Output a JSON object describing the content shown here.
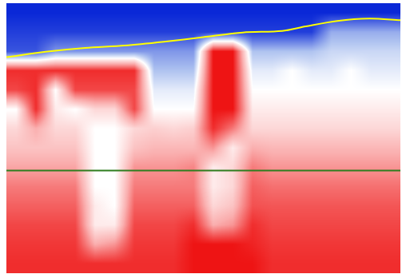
{
  "chart_data": {
    "type": "heatmap",
    "tick_labels": false,
    "grid": false,
    "xlim": [
      0,
      500
    ],
    "ylim": [
      0,
      350
    ],
    "zlim": [
      0,
      1
    ],
    "x_bins": [
      0,
      25,
      50,
      75,
      100,
      125,
      150,
      175,
      200,
      225,
      250,
      275,
      300,
      325,
      350,
      375,
      400,
      425,
      450,
      475,
      500
    ],
    "y_bins": [
      350,
      325,
      300,
      275,
      250,
      225,
      200,
      175,
      150,
      125,
      100,
      75,
      50,
      25,
      0
    ],
    "cells": [
      [
        0,
        0,
        0,
        0,
        0,
        0,
        0,
        0,
        0,
        0,
        0,
        0,
        0,
        0,
        0,
        0,
        0,
        0,
        0,
        0
      ],
      [
        0.05,
        0.05,
        0.05,
        0.05,
        0.05,
        0.05,
        0.05,
        0.05,
        0.05,
        0.05,
        0.05,
        0.05,
        0.05,
        0.05,
        0.05,
        0.05,
        0.3,
        0.3,
        0.3,
        0.3
      ],
      [
        0.1,
        0.1,
        0.25,
        0.25,
        0.25,
        0.25,
        0.25,
        0.25,
        0.25,
        0.25,
        1,
        1,
        0.35,
        0.35,
        0.35,
        0.35,
        0.4,
        0.4,
        0.4,
        0.4
      ],
      [
        0.95,
        0.95,
        0.95,
        0.95,
        0.95,
        0.95,
        0.95,
        0.35,
        0.35,
        0.35,
        1,
        1,
        0.45,
        0.45,
        0.5,
        0.45,
        0.45,
        0.5,
        0.45,
        0.45
      ],
      [
        0.9,
        0.95,
        0.5,
        0.9,
        0.9,
        0.9,
        0.9,
        0.45,
        0.45,
        0.45,
        1,
        1,
        0.5,
        0.5,
        0.5,
        0.5,
        0.5,
        0.5,
        0.5,
        0.5
      ],
      [
        0.5,
        0.95,
        0.55,
        0.5,
        0.6,
        0.6,
        0.9,
        0.5,
        0.5,
        0.5,
        1,
        1,
        0.55,
        0.55,
        0.55,
        0.55,
        0.55,
        0.55,
        0.55,
        0.55
      ],
      [
        0.6,
        0.7,
        0.6,
        0.6,
        0.5,
        0.5,
        0.6,
        0.62,
        0.6,
        0.62,
        0.95,
        0.8,
        0.6,
        0.6,
        0.6,
        0.6,
        0.6,
        0.6,
        0.6,
        0.6
      ],
      [
        0.65,
        0.65,
        0.65,
        0.65,
        0.5,
        0.5,
        0.65,
        0.68,
        0.68,
        0.68,
        0.75,
        0.55,
        0.7,
        0.68,
        0.68,
        0.68,
        0.68,
        0.68,
        0.68,
        0.68
      ],
      [
        0.72,
        0.72,
        0.72,
        0.72,
        0.5,
        0.5,
        0.75,
        0.75,
        0.75,
        0.78,
        0.55,
        0.6,
        0.8,
        0.75,
        0.75,
        0.75,
        0.75,
        0.75,
        0.75,
        0.75
      ],
      [
        0.8,
        0.8,
        0.8,
        0.8,
        0.5,
        0.5,
        0.8,
        0.8,
        0.8,
        0.8,
        0.55,
        0.6,
        0.85,
        0.82,
        0.82,
        0.82,
        0.82,
        0.82,
        0.82,
        0.82
      ],
      [
        0.85,
        0.85,
        0.85,
        0.85,
        0.55,
        0.5,
        0.85,
        0.85,
        0.85,
        0.85,
        0.6,
        0.65,
        0.88,
        0.87,
        0.87,
        0.87,
        0.87,
        0.87,
        0.87,
        0.87
      ],
      [
        0.9,
        0.9,
        0.9,
        0.9,
        0.55,
        0.55,
        0.9,
        0.9,
        0.9,
        0.95,
        0.7,
        0.75,
        0.95,
        0.9,
        0.9,
        0.9,
        0.9,
        0.9,
        0.9,
        0.9
      ],
      [
        0.93,
        0.93,
        0.93,
        0.93,
        0.7,
        0.75,
        0.93,
        0.93,
        0.93,
        1,
        1,
        1,
        0.97,
        0.93,
        0.93,
        0.93,
        0.93,
        0.93,
        0.93,
        0.93
      ],
      [
        0.95,
        0.95,
        0.95,
        0.95,
        0.95,
        0.95,
        0.95,
        0.95,
        0.95,
        1,
        1,
        1,
        1,
        0.95,
        0.95,
        0.95,
        0.95,
        0.95,
        0.95,
        0.95
      ]
    ],
    "series": [
      {
        "type": "line",
        "color": "#ffff00",
        "x": [
          0,
          50,
          100,
          150,
          200,
          250,
          300,
          350,
          380,
          420,
          460,
          500
        ],
        "values": [
          280,
          287,
          292,
          295,
          300,
          306,
          312,
          314,
          320,
          327,
          330,
          328
        ]
      },
      {
        "type": "line",
        "color": "#2e7d1e",
        "x": [
          0,
          500
        ],
        "values": [
          133,
          133
        ]
      }
    ]
  }
}
